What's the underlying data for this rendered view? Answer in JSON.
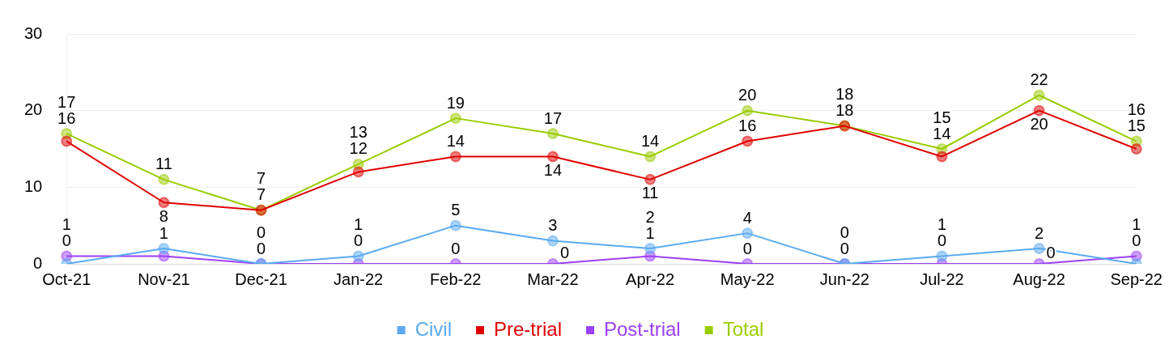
{
  "chart_data": {
    "type": "line",
    "categories": [
      "Oct-21",
      "Nov-21",
      "Dec-21",
      "Jan-22",
      "Feb-22",
      "Mar-22",
      "Apr-22",
      "May-22",
      "Jun-22",
      "Jul-22",
      "Aug-22",
      "Sep-22"
    ],
    "series": [
      {
        "name": "Civil",
        "color": "#5aaaf0",
        "values": [
          0,
          2,
          0,
          1,
          5,
          3,
          2,
          4,
          0,
          1,
          2,
          0
        ]
      },
      {
        "name": "Pre-trial",
        "color": "#e00000",
        "values": [
          16,
          8,
          7,
          12,
          14,
          14,
          11,
          16,
          18,
          14,
          20,
          15
        ]
      },
      {
        "name": "Post-trial",
        "color": "#9b40f5",
        "values": [
          1,
          1,
          0,
          0,
          0,
          0,
          1,
          0,
          0,
          0,
          0,
          1
        ]
      },
      {
        "name": "Total",
        "color": "#99cc00",
        "values": [
          17,
          11,
          7,
          13,
          19,
          17,
          14,
          20,
          18,
          15,
          22,
          16
        ]
      }
    ],
    "ylim": [
      0,
      30
    ],
    "yticks": [
      0,
      10,
      20,
      30
    ],
    "grid": "y",
    "legend": "bottom",
    "marker": "circle",
    "line_style": "solid",
    "data_labels": true
  }
}
